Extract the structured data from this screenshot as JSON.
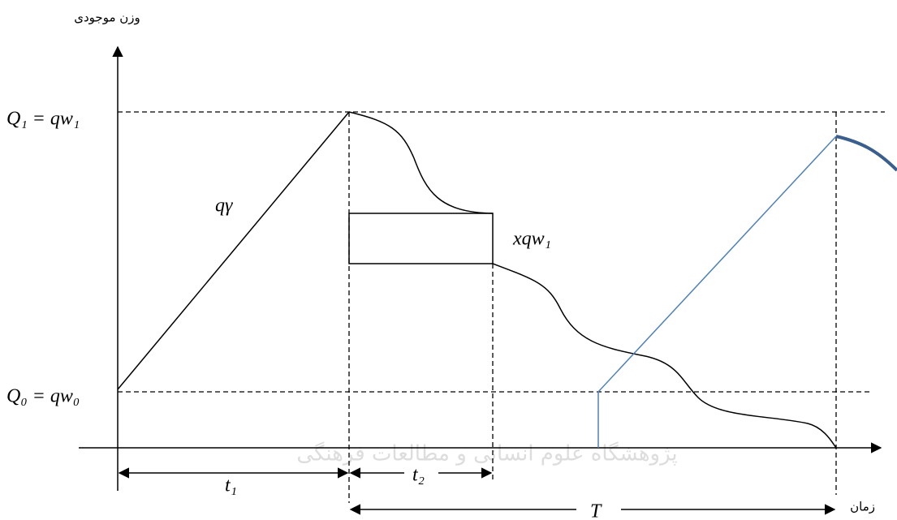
{
  "axes": {
    "y_label": "وزن موجودی",
    "x_label": "زمان"
  },
  "levels": {
    "q1": "Q₁ = qw₁",
    "q0": "Q₀ = qw₀"
  },
  "annotations": {
    "slope": "qγ",
    "batch": "xqw₁",
    "t1": "t₁",
    "t2": "t₂",
    "period": "T"
  },
  "watermark": "پژوهشگاه علوم انسانی و مطالعات فرهنگی"
}
